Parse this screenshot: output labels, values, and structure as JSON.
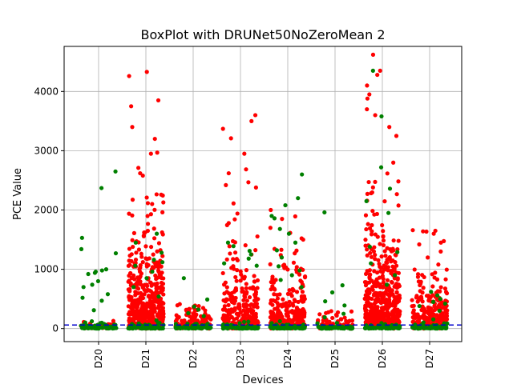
{
  "chart_data": {
    "type": "scatter",
    "title": "BoxPlot with DRUNet50NoZeroMean 2",
    "xlabel": "Devices",
    "ylabel": "PCE Value",
    "categories": [
      "D20",
      "D21",
      "D22",
      "D23",
      "D24",
      "D25",
      "D26",
      "D27"
    ],
    "ylim": [
      -220,
      4760
    ],
    "yticks": [
      0,
      1000,
      2000,
      3000,
      4000
    ],
    "grid": true,
    "threshold_line": {
      "y": 60,
      "color": "#0000cc",
      "style": "dashed"
    },
    "colors": {
      "red": "#ff0000",
      "green": "#008000"
    },
    "series": [
      {
        "color": "red",
        "distributions": [
          {
            "category": "D20",
            "n": 35,
            "max": 130,
            "scale": 45,
            "outliers": []
          },
          {
            "category": "D21",
            "n": 520,
            "max": 4330,
            "scale": 520,
            "outliers": [
              4330,
              4260,
              3850,
              3750,
              3400,
              3200,
              2950,
              2620,
              2580
            ]
          },
          {
            "category": "D22",
            "n": 140,
            "max": 420,
            "scale": 120,
            "outliers": []
          },
          {
            "category": "D23",
            "n": 260,
            "max": 3600,
            "scale": 440,
            "outliers": [
              3600,
              3500,
              3370,
              3210,
              2950,
              2620,
              2420,
              2380
            ]
          },
          {
            "category": "D24",
            "n": 280,
            "max": 2000,
            "scale": 330,
            "outliers": [
              2000,
              1850,
              1700,
              1500
            ]
          },
          {
            "category": "D25",
            "n": 70,
            "max": 300,
            "scale": 90,
            "outliers": []
          },
          {
            "category": "D26",
            "n": 520,
            "max": 4620,
            "scale": 560,
            "outliers": [
              4620,
              4350,
              4280,
              4100,
              3950,
              3880,
              3700,
              3600,
              3400,
              3250,
              2800
            ]
          },
          {
            "category": "D27",
            "n": 230,
            "max": 1660,
            "scale": 320,
            "outliers": [
              1660,
              1650,
              1640,
              1600,
              1450,
              1420,
              1300
            ]
          }
        ]
      },
      {
        "color": "green",
        "distributions": [
          {
            "category": "D20",
            "n": 75,
            "max": 2650,
            "scale": 25,
            "outliers": [
              2650,
              2370,
              1530,
              1340,
              1270,
              1000,
              980,
              960,
              940,
              920,
              800,
              740,
              700,
              580,
              520,
              470,
              310
            ]
          },
          {
            "category": "D21",
            "n": 75,
            "max": 1600,
            "scale": 25,
            "outliers": [
              1600,
              1450,
              1280,
              1160,
              1120,
              1060,
              960,
              850,
              700,
              540
            ]
          },
          {
            "category": "D22",
            "n": 70,
            "max": 850,
            "scale": 20,
            "outliers": [
              850,
              490,
              370,
              320,
              260,
              210
            ]
          },
          {
            "category": "D23",
            "n": 75,
            "max": 1450,
            "scale": 25,
            "outliers": [
              1450,
              1390,
              1310,
              1250,
              1180,
              1100,
              1060
            ]
          },
          {
            "category": "D24",
            "n": 80,
            "max": 2600,
            "scale": 25,
            "outliers": [
              2600,
              2200,
              2080,
              1900,
              1860,
              1680,
              1600,
              1450,
              1320,
              1200,
              1050,
              980,
              900,
              820,
              700
            ]
          },
          {
            "category": "D25",
            "n": 70,
            "max": 1960,
            "scale": 20,
            "outliers": [
              1960,
              730,
              610,
              460,
              390,
              250,
              190
            ]
          },
          {
            "category": "D26",
            "n": 75,
            "max": 4350,
            "scale": 25,
            "outliers": [
              4350,
              3580,
              2720,
              2360,
              2150,
              1950,
              1380,
              1290,
              1100,
              900,
              740
            ]
          },
          {
            "category": "D27",
            "n": 70,
            "max": 620,
            "scale": 25,
            "outliers": [
              620,
              560,
              500,
              450,
              420,
              380,
              300
            ]
          }
        ]
      }
    ]
  }
}
